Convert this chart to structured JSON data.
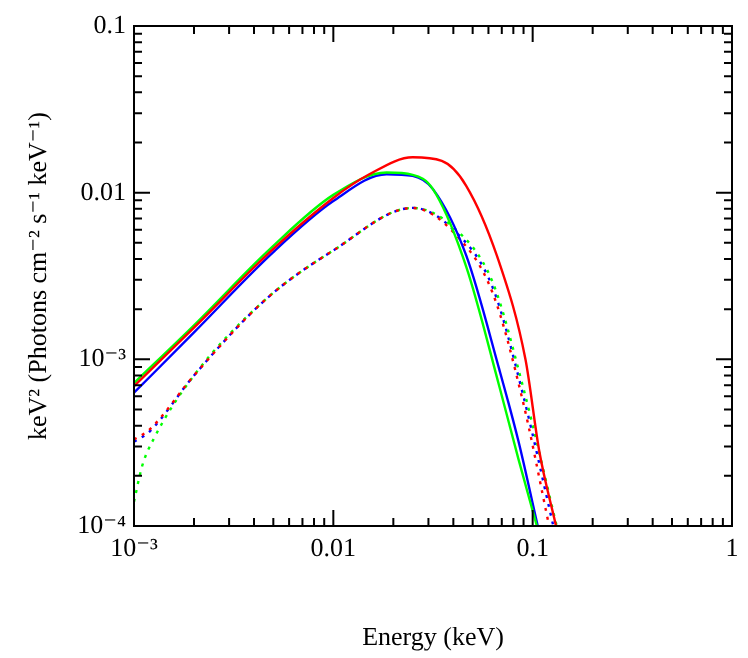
{
  "chart_data": {
    "type": "line",
    "xlabel": "Energy (keV)",
    "ylabel": "keV² (Photons cm⁻² s⁻¹ keV⁻¹)",
    "log": "xy",
    "grid": false,
    "legend": false,
    "marker": "none",
    "xlim": [
      0.001,
      1
    ],
    "ylim": [
      0.0001,
      0.1
    ],
    "xticks": [
      {
        "value": 0.001,
        "label": "10⁻³"
      },
      {
        "value": 0.002,
        "label": null
      },
      {
        "value": 0.003,
        "label": null
      },
      {
        "value": 0.004,
        "label": null
      },
      {
        "value": 0.005,
        "label": null
      },
      {
        "value": 0.006,
        "label": null
      },
      {
        "value": 0.007,
        "label": null
      },
      {
        "value": 0.008,
        "label": null
      },
      {
        "value": 0.009,
        "label": null
      },
      0.01,
      {
        "value": 0.02,
        "label": null
      },
      {
        "value": 0.03,
        "label": null
      },
      {
        "value": 0.04,
        "label": null
      },
      {
        "value": 0.05,
        "label": null
      },
      {
        "value": 0.06,
        "label": null
      },
      {
        "value": 0.07,
        "label": null
      },
      {
        "value": 0.08,
        "label": null
      },
      {
        "value": 0.09,
        "label": null
      },
      0.1,
      {
        "value": 0.2,
        "label": null
      },
      {
        "value": 0.3,
        "label": null
      },
      {
        "value": 0.4,
        "label": null
      },
      {
        "value": 0.5,
        "label": null
      },
      {
        "value": 0.6,
        "label": null
      },
      {
        "value": 0.7,
        "label": null
      },
      {
        "value": 0.8,
        "label": null
      },
      {
        "value": 0.9,
        "label": null
      },
      1
    ],
    "yticks": [
      {
        "value": 0.0001,
        "label": "10⁻⁴"
      },
      {
        "value": 0.0002,
        "label": null
      },
      {
        "value": 0.0003,
        "label": null
      },
      {
        "value": 0.0004,
        "label": null
      },
      {
        "value": 0.0005,
        "label": null
      },
      {
        "value": 0.0006,
        "label": null
      },
      {
        "value": 0.0007,
        "label": null
      },
      {
        "value": 0.0008,
        "label": null
      },
      {
        "value": 0.0009,
        "label": null
      },
      {
        "value": 0.001,
        "label": "10⁻³"
      },
      {
        "value": 0.002,
        "label": null
      },
      {
        "value": 0.003,
        "label": null
      },
      {
        "value": 0.004,
        "label": null
      },
      {
        "value": 0.005,
        "label": null
      },
      {
        "value": 0.006,
        "label": null
      },
      {
        "value": 0.007,
        "label": null
      },
      {
        "value": 0.008,
        "label": null
      },
      {
        "value": 0.009,
        "label": null
      },
      0.01,
      {
        "value": 0.02,
        "label": null
      },
      {
        "value": 0.03,
        "label": null
      },
      {
        "value": 0.04,
        "label": null
      },
      {
        "value": 0.05,
        "label": null
      },
      {
        "value": 0.06,
        "label": null
      },
      {
        "value": 0.07,
        "label": null
      },
      {
        "value": 0.08,
        "label": null
      },
      {
        "value": 0.09,
        "label": null
      },
      0.1
    ],
    "series": [
      {
        "color": "#ff0000",
        "line_style": "solid",
        "x": [
          0.001,
          0.002,
          0.005,
          0.01,
          0.015,
          0.025,
          0.035,
          0.0464,
          0.068,
          0.092,
          0.108,
          0.131
        ],
        "values": [
          0.00069,
          0.00155,
          0.0046,
          0.0093,
          0.0128,
          0.0163,
          0.0155,
          0.011,
          0.0038,
          0.001,
          0.00028,
          0.0001
        ]
      },
      {
        "color": "#00ff00",
        "line_style": "solid",
        "x": [
          0.001,
          0.002,
          0.005,
          0.01,
          0.0185,
          0.025,
          0.0316,
          0.0464,
          0.068,
          0.085,
          0.105
        ],
        "values": [
          0.00072,
          0.0016,
          0.0048,
          0.0097,
          0.0132,
          0.0128,
          0.0105,
          0.0036,
          0.00069,
          0.00025,
          0.0001
        ]
      },
      {
        "color": "#0000ff",
        "line_style": "solid",
        "x": [
          0.001,
          0.002,
          0.005,
          0.01,
          0.0185,
          0.025,
          0.0316,
          0.0464,
          0.068,
          0.085,
          0.106
        ],
        "values": [
          0.00063,
          0.00145,
          0.0044,
          0.0089,
          0.0129,
          0.0126,
          0.0105,
          0.0042,
          0.00087,
          0.00032,
          0.0001
        ]
      },
      {
        "color": "#ff0000",
        "line_style": "dotted",
        "x": [
          0.001,
          0.0012,
          0.002,
          0.0046,
          0.01,
          0.025,
          0.04,
          0.063,
          0.089,
          0.121
        ],
        "values": [
          0.00033,
          0.00038,
          0.0008,
          0.0023,
          0.0045,
          0.0081,
          0.0058,
          0.0025,
          0.00057,
          0.0001
        ]
      },
      {
        "color": "#00ff00",
        "line_style": "dotted",
        "x": [
          0.001,
          0.0011,
          0.00125,
          0.002,
          0.0046,
          0.01,
          0.025,
          0.04,
          0.063,
          0.089,
          0.132
        ],
        "values": [
          0.00014,
          0.00023,
          0.00033,
          0.0008,
          0.0023,
          0.0045,
          0.0081,
          0.0062,
          0.0029,
          0.0007,
          0.0001
        ]
      },
      {
        "color": "#0000ff",
        "line_style": "dotted",
        "x": [
          0.001,
          0.0012,
          0.002,
          0.0046,
          0.01,
          0.025,
          0.04,
          0.063,
          0.089,
          0.127
        ],
        "values": [
          0.00032,
          0.00037,
          0.0008,
          0.0023,
          0.0045,
          0.0081,
          0.006,
          0.0027,
          0.00063,
          0.0001
        ]
      }
    ]
  }
}
